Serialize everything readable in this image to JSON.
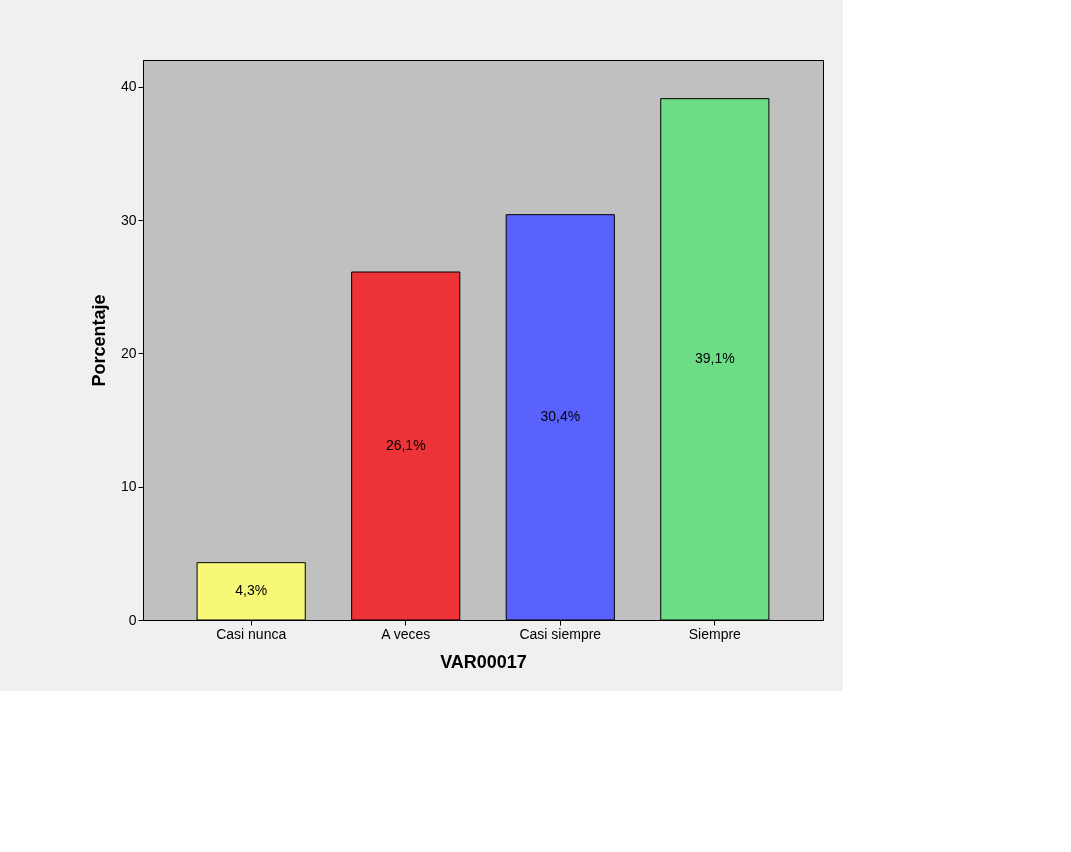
{
  "chart_data": {
    "type": "bar",
    "xlabel": "VAR00017",
    "ylabel": "Porcentaje",
    "categories": [
      "Casi nunca",
      "A veces",
      "Casi siempre",
      "Siempre"
    ],
    "values": [
      4.3,
      26.1,
      30.4,
      39.1
    ],
    "colors": [
      "#f8f878",
      "#ee3338",
      "#5a62fe",
      "#6ddc86"
    ],
    "value_labels": [
      "4,3%",
      "26,1%",
      "30,4%",
      "39,1%"
    ],
    "ylim": [
      0,
      42
    ],
    "yticks": [
      0,
      10,
      20,
      30,
      40
    ],
    "grid": false
  }
}
